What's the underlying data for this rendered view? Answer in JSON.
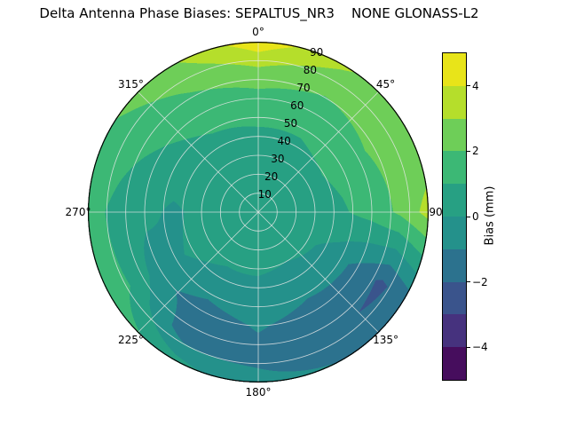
{
  "chart_data": {
    "type": "heatmap",
    "subtype": "polar_filled_contour",
    "title": "Delta Antenna Phase Biases: SEPALTUS_NR3    NONE GLONASS-L2",
    "angular_tick_labels": [
      "0°",
      "45°",
      "90°",
      "135°",
      "180°",
      "225°",
      "270°",
      "315°"
    ],
    "angular_tick_angles_deg": [
      0,
      45,
      90,
      135,
      180,
      225,
      270,
      315
    ],
    "radial_ticks": {
      "values": [
        10,
        20,
        30,
        40,
        50,
        60,
        70,
        80,
        90
      ],
      "labels": [
        "10",
        "20",
        "30",
        "40",
        "50",
        "60",
        "70",
        "80",
        "90"
      ]
    },
    "radial_axis_max": 90,
    "radial_label_angle_deg": 20,
    "grid_color": "rgba(230,230,230,0.85)",
    "levels": [
      -5,
      -4,
      -3,
      -2,
      -1,
      0,
      1,
      2,
      3,
      4,
      5
    ],
    "band_colors_ascending": [
      "#460d5d",
      "#46327e",
      "#3a548c",
      "#2c728e",
      "#24918b",
      "#27a083",
      "#3cb875",
      "#6ece58",
      "#b5de2b",
      "#e8e419"
    ],
    "colorbar": {
      "label": "Bias (mm)",
      "vmin": -5,
      "vmax": 5,
      "tick_values": [
        4,
        2,
        0,
        -2,
        -4
      ],
      "tick_labels": [
        "4",
        "2",
        "0",
        "−2",
        "−4"
      ]
    },
    "field": {
      "units": "mm",
      "azimuth_deg": [
        0,
        30,
        60,
        90,
        120,
        150,
        180,
        210,
        240,
        270,
        300,
        330
      ],
      "radius": [
        0,
        15,
        30,
        45,
        60,
        75,
        90
      ],
      "bias_mm": [
        [
          0.5,
          0.5,
          0.7,
          1.0,
          1.6,
          2.8,
          4.7
        ],
        [
          0.5,
          0.5,
          0.7,
          1.0,
          1.5,
          2.2,
          3.2
        ],
        [
          0.5,
          0.5,
          0.7,
          1.2,
          1.8,
          2.4,
          2.0
        ],
        [
          0.5,
          0.5,
          0.6,
          0.9,
          1.4,
          2.2,
          3.4
        ],
        [
          0.5,
          0.4,
          0.2,
          -0.4,
          -1.3,
          -2.2,
          -1.4
        ],
        [
          0.5,
          0.3,
          0.0,
          -0.6,
          -1.4,
          -1.8,
          -1.0
        ],
        [
          0.5,
          0.3,
          0.1,
          -0.3,
          -0.9,
          -1.3,
          -0.7
        ],
        [
          0.5,
          0.3,
          0.1,
          -0.4,
          -1.5,
          -1.6,
          0.4
        ],
        [
          0.5,
          0.4,
          0.3,
          0.0,
          -0.6,
          0.8,
          1.8
        ],
        [
          0.5,
          0.4,
          0.3,
          -0.2,
          0.3,
          0.8,
          1.3
        ],
        [
          0.5,
          0.5,
          0.5,
          0.6,
          0.9,
          1.3,
          1.9
        ],
        [
          0.5,
          0.5,
          0.6,
          0.9,
          1.4,
          2.1,
          2.9
        ]
      ]
    }
  }
}
